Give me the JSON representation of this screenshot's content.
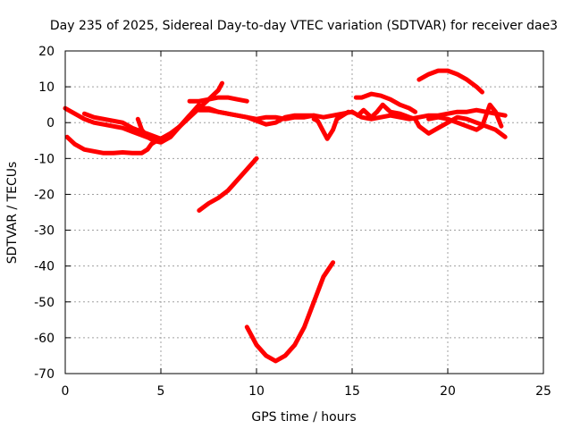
{
  "chart_data": {
    "type": "line",
    "title": "Day 235 of 2025, Sidereal Day-to-day VTEC variation (SDTVAR) for receiver dae3",
    "xlabel": "GPS time / hours",
    "ylabel": "SDTVAR / TECUs",
    "xlim": [
      0,
      25
    ],
    "ylim": [
      -70,
      20
    ],
    "xticks": [
      0,
      5,
      10,
      15,
      20,
      25
    ],
    "yticks": [
      -70,
      -60,
      -50,
      -40,
      -30,
      -20,
      -10,
      0,
      10,
      20
    ],
    "grid": true,
    "color": "#ff0000",
    "series": [
      {
        "name": "s1",
        "x": [
          0.1,
          0.5,
          1.0,
          1.5,
          2.0,
          2.5,
          3.0,
          3.5,
          4.0,
          4.3
        ],
        "y": [
          -4,
          -6,
          -7.5,
          -8,
          -8.5,
          -8.5,
          -8.3,
          -8.5,
          -8.5,
          -7.5
        ]
      },
      {
        "name": "s2",
        "x": [
          4.3,
          4.5,
          4.8,
          5.0,
          5.5,
          6.0,
          6.5,
          7.0,
          7.5,
          8.0,
          8.2
        ],
        "y": [
          -7.5,
          -6,
          -5,
          -4.5,
          -3,
          -1,
          1.5,
          4,
          6.5,
          9,
          11
        ]
      },
      {
        "name": "s3",
        "x": [
          0.0,
          0.5,
          1.0,
          1.5,
          2.0,
          2.5,
          3.0,
          3.5,
          4.0,
          4.5,
          5.0,
          5.5,
          6.0,
          6.5,
          7.0
        ],
        "y": [
          4,
          2.5,
          1,
          0,
          -0.5,
          -1,
          -1.5,
          -2.5,
          -3.5,
          -4.5,
          -5,
          -3.5,
          -1,
          2,
          5
        ]
      },
      {
        "name": "s4",
        "x": [
          1.0,
          1.5,
          2.0,
          2.5,
          3.0,
          3.5,
          4.0,
          4.5,
          5.0,
          5.5
        ],
        "y": [
          2.5,
          1.5,
          1,
          0.5,
          0,
          -1.5,
          -2.5,
          -3.5,
          -4.5,
          -3
        ]
      },
      {
        "name": "s5",
        "x": [
          3.8,
          4.0,
          4.3,
          4.6,
          5.0,
          5.5,
          6.0,
          6.5,
          7.0,
          7.5,
          8.0,
          8.5,
          9.0,
          9.5,
          10.0,
          10.5,
          11.0,
          11.5,
          12.0,
          12.5,
          13.0
        ],
        "y": [
          1,
          -2,
          -4,
          -5,
          -5.5,
          -4,
          -1,
          2,
          4,
          4,
          3,
          2.5,
          2,
          1.5,
          1,
          1.5,
          1.5,
          1,
          1.5,
          1.5,
          2
        ]
      },
      {
        "name": "s6",
        "x": [
          6.5,
          7.0,
          7.5,
          8.0,
          8.5,
          9.0,
          9.5
        ],
        "y": [
          6,
          6,
          6.5,
          7,
          7,
          6.5,
          6
        ]
      },
      {
        "name": "s7",
        "x": [
          7.0,
          7.5,
          8.0,
          8.5,
          9.0,
          9.5,
          10.0,
          10.5,
          11.0,
          11.5,
          12.0,
          12.5,
          13.0,
          13.5,
          14.0,
          14.5,
          15.0
        ],
        "y": [
          3.5,
          3.5,
          3,
          2.5,
          2,
          1.5,
          0.5,
          -0.5,
          0,
          1.5,
          2,
          2,
          2,
          1.5,
          2,
          2.5,
          3
        ]
      },
      {
        "name": "s8",
        "x": [
          13.0,
          13.2,
          13.5,
          13.7,
          14.0,
          14.2,
          14.5,
          14.8
        ],
        "y": [
          1,
          0.5,
          -2.5,
          -4.5,
          -2,
          1,
          2,
          3
        ]
      },
      {
        "name": "s9",
        "x": [
          15.0,
          15.5,
          16.0,
          16.5,
          17.0,
          17.5,
          18.0,
          18.5,
          19.0,
          19.5,
          20.0,
          20.5,
          21.0,
          21.5,
          22.0,
          22.5,
          23.0
        ],
        "y": [
          3,
          1.5,
          1,
          1.5,
          2,
          1.5,
          1,
          1.5,
          2,
          2,
          2.5,
          3,
          3,
          3.5,
          3,
          2.5,
          2
        ]
      },
      {
        "name": "s10",
        "x": [
          15.3,
          15.6,
          16.0,
          16.3,
          16.6,
          17.0,
          17.5,
          18.0,
          18.3,
          18.5,
          19.0,
          19.5,
          20.0,
          20.5,
          21.0,
          21.5,
          22.0,
          22.5,
          23.0
        ],
        "y": [
          2,
          3.5,
          1.5,
          3,
          5,
          3,
          2.5,
          1.5,
          1,
          -1,
          -3,
          -1.5,
          0,
          1.5,
          1,
          0,
          -1,
          -2,
          -4
        ]
      },
      {
        "name": "s11",
        "x": [
          15.2,
          15.5,
          16.0,
          16.5,
          17.0,
          17.5,
          18.0,
          18.3
        ],
        "y": [
          7,
          7,
          8,
          7.5,
          6.5,
          5,
          4,
          3
        ]
      },
      {
        "name": "s12",
        "x": [
          18.5,
          19.0,
          19.5,
          20.0,
          20.5,
          21.0,
          21.5,
          21.8
        ],
        "y": [
          12,
          13.5,
          14.5,
          14.5,
          13.5,
          12,
          10,
          8.5
        ]
      },
      {
        "name": "s13",
        "x": [
          19.0,
          19.5,
          20.0,
          20.5,
          21.0,
          21.5,
          21.8,
          22.0,
          22.2,
          22.5,
          22.8
        ],
        "y": [
          1,
          1.5,
          1,
          0,
          -1,
          -2,
          -1,
          2,
          5,
          3,
          -1
        ]
      },
      {
        "name": "s14",
        "x": [
          7.0,
          7.5,
          8.0,
          8.5,
          9.0,
          9.5,
          10.0
        ],
        "y": [
          -24.5,
          -22.5,
          -21,
          -19,
          -16,
          -13,
          -10
        ]
      },
      {
        "name": "s15",
        "x": [
          9.5,
          10.0,
          10.5,
          11.0,
          11.5,
          12.0,
          12.5,
          13.0,
          13.5,
          14.0
        ],
        "y": [
          -57,
          -62,
          -65,
          -66.5,
          -65,
          -62,
          -57,
          -50,
          -43,
          -39
        ]
      }
    ]
  }
}
